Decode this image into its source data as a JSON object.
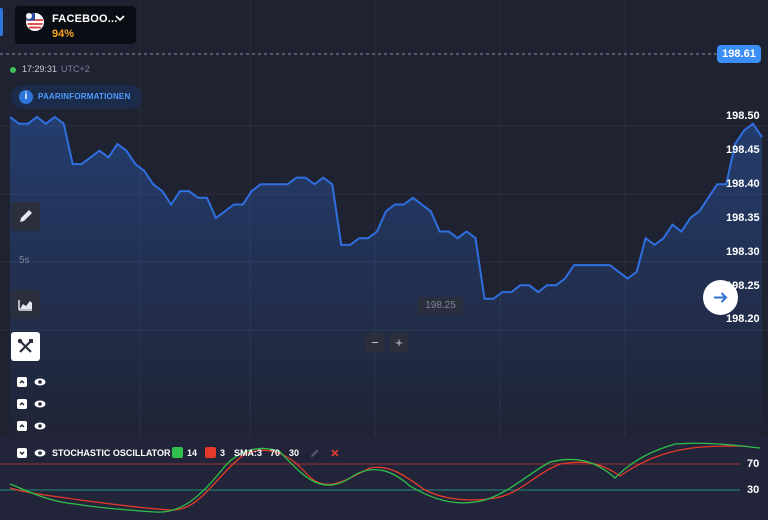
{
  "asset": {
    "name": "FACEBOO...",
    "payout": "94%"
  },
  "price_tag": "198.61",
  "clock": {
    "time": "17:29:31",
    "timezone": "UTC+2"
  },
  "pair_info_label": "PAARINFORMATIONEN",
  "y_axis": [
    "198.50",
    "198.45",
    "198.40",
    "198.35",
    "198.30",
    "198.25",
    "198.20"
  ],
  "low_marker": "198.25",
  "timeframe": "5s",
  "zoom": {
    "minus": "−",
    "plus": "+"
  },
  "oscillator": {
    "name": "STOCHASTIC OSCILLATOR",
    "k_period": "14",
    "d_period": "3",
    "sma": "SMA:3",
    "upper": "70",
    "lower": "30",
    "k_color": "#2fbf4a",
    "d_color": "#e53a2b"
  },
  "colors": {
    "accent": "#3a8ef6",
    "price_line": "#2f6fe0",
    "payout": "#f6a623"
  },
  "icons": [
    "us-flag-icon",
    "chevron-down-icon",
    "info-icon",
    "pencil-icon",
    "area-chart-icon",
    "crossed-tools-icon",
    "arrow-right-icon",
    "eye-icon",
    "collapse-icon",
    "close-icon"
  ],
  "chart_data": {
    "type": "area",
    "title": "",
    "xlabel": "",
    "ylabel": "",
    "ylim": [
      198.2,
      198.5
    ],
    "series": [
      {
        "values": [
          198.5,
          198.49,
          198.49,
          198.5,
          198.49,
          198.5,
          198.49,
          198.43,
          198.43,
          198.44,
          198.45,
          198.44,
          198.46,
          198.45,
          198.43,
          198.42,
          198.4,
          198.39,
          198.37,
          198.39,
          198.39,
          198.38,
          198.38,
          198.35,
          198.36,
          198.37,
          198.37,
          198.39,
          198.4,
          198.4,
          198.4,
          198.4,
          198.41,
          198.41,
          198.4,
          198.41,
          198.4,
          198.31,
          198.31,
          198.32,
          198.32,
          198.33,
          198.36,
          198.37,
          198.37,
          198.38,
          198.37,
          198.36,
          198.33,
          198.33,
          198.32,
          198.33,
          198.32,
          198.23,
          198.23,
          198.24,
          198.24,
          198.25,
          198.25,
          198.24,
          198.25,
          198.25,
          198.26,
          198.28,
          198.28,
          198.28,
          198.28,
          198.28,
          198.27,
          198.26,
          198.27,
          198.32,
          198.31,
          198.32,
          198.34,
          198.33,
          198.35,
          198.36,
          198.38,
          198.4,
          198.4,
          198.46,
          198.48,
          198.49,
          198.47
        ]
      }
    ]
  }
}
